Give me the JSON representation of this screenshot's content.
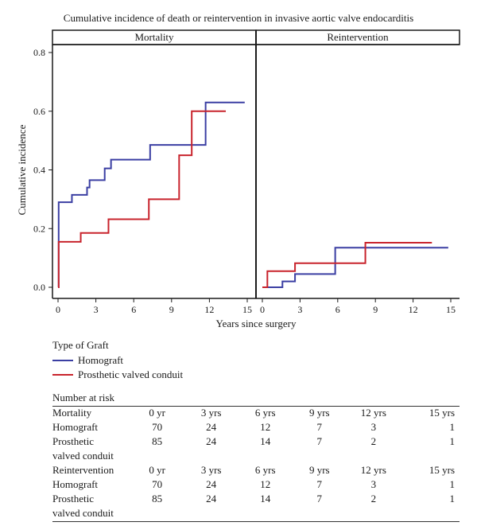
{
  "chart_data": {
    "type": "line",
    "step": true,
    "title": "Cumulative incidence of death or reintervention in invasive aortic valve endocarditis",
    "xlabel": "Years since surgery",
    "ylabel": "Cumulative incidence",
    "xlim": [
      0,
      15
    ],
    "ylim": [
      0,
      0.8
    ],
    "xticks": [
      0,
      3,
      6,
      9,
      12,
      15
    ],
    "yticks": [
      0.0,
      0.2,
      0.4,
      0.6,
      0.8
    ],
    "ytick_labels": [
      "0.0",
      "0.2",
      "0.4",
      "0.6",
      "0.8"
    ],
    "grid": false,
    "series_colors": {
      "Homograft": "#3b3fa3",
      "Prosthetic valved conduit": "#c8232c"
    },
    "panels": [
      {
        "title": "Mortality",
        "series": [
          {
            "name": "Homograft",
            "x": [
              0,
              0.05,
              0.6,
              1.1,
              2.3,
              2.5,
              3.4,
              3.7,
              4.2,
              6.2,
              7.3,
              10.3,
              11.7,
              14.8
            ],
            "y": [
              0,
              0.29,
              0.29,
              0.315,
              0.34,
              0.365,
              0.365,
              0.405,
              0.435,
              0.435,
              0.485,
              0.485,
              0.63,
              0.63
            ]
          },
          {
            "name": "Prosthetic valved conduit",
            "x": [
              0,
              0.05,
              1.5,
              1.8,
              3.6,
              4.0,
              6.4,
              7.2,
              9.3,
              9.6,
              10.6,
              13.3
            ],
            "y": [
              0,
              0.155,
              0.155,
              0.185,
              0.185,
              0.232,
              0.232,
              0.3,
              0.3,
              0.45,
              0.6,
              0.6
            ]
          }
        ]
      },
      {
        "title": "Reintervention",
        "series": [
          {
            "name": "Homograft",
            "x": [
              0,
              1.0,
              1.6,
              2.6,
              5.0,
              5.8,
              14.8
            ],
            "y": [
              0,
              0,
              0.02,
              0.045,
              0.045,
              0.135,
              0.135
            ]
          },
          {
            "name": "Prosthetic valved conduit",
            "x": [
              0,
              0.4,
              2.6,
              6.4,
              8.2,
              13.5
            ],
            "y": [
              0,
              0.055,
              0.082,
              0.082,
              0.152,
              0.152
            ]
          }
        ]
      }
    ]
  },
  "legend": {
    "title": "Type of Graft",
    "items": [
      {
        "label": "Homograft",
        "color": "#3b3fa3"
      },
      {
        "label": "Prosthetic valved conduit",
        "color": "#c8232c"
      }
    ]
  },
  "risk_table": {
    "title": "Number at risk",
    "sections": [
      {
        "name": "Mortality",
        "columns": [
          "0 yr",
          "3 yrs",
          "6 yrs",
          "9 yrs",
          "12 yrs",
          "15 yrs"
        ],
        "rows": [
          {
            "label": "Homograft",
            "label2": "",
            "values": [
              "70",
              "24",
              "12",
              "7",
              "3",
              "1"
            ]
          },
          {
            "label": "Prosthetic",
            "label2": "valved conduit",
            "values": [
              "85",
              "24",
              "14",
              "7",
              "2",
              "1"
            ]
          }
        ]
      },
      {
        "name": "Reintervention",
        "columns": [
          "0 yr",
          "3 yrs",
          "6 yrs",
          "9 yrs",
          "12 yrs",
          "15 yrs"
        ],
        "rows": [
          {
            "label": "Homograft",
            "label2": "",
            "values": [
              "70",
              "24",
              "12",
              "7",
              "3",
              "1"
            ]
          },
          {
            "label": "Prosthetic",
            "label2": "valved conduit",
            "values": [
              "85",
              "24",
              "14",
              "7",
              "2",
              "1"
            ]
          }
        ]
      }
    ]
  }
}
